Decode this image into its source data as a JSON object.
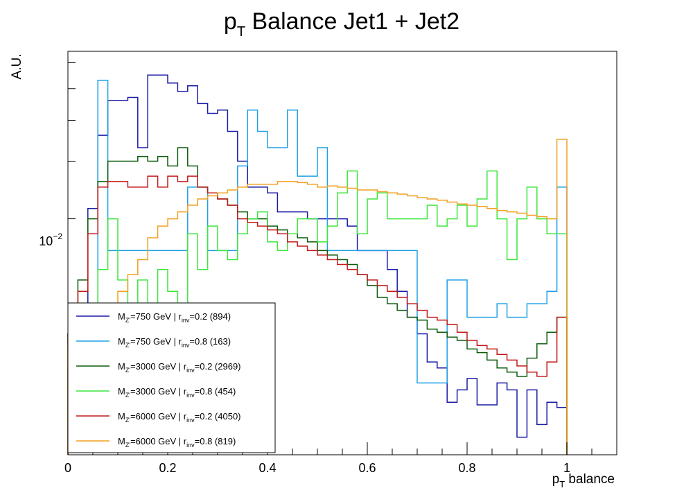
{
  "chart_data": {
    "type": "line",
    "style": "step-histogram",
    "title": {
      "main": "p",
      "sub": "T",
      "rest": " Balance Jet1 + Jet2"
    },
    "xlabel": {
      "main": "p",
      "sub": "T",
      "rest": " balance"
    },
    "ylabel": "A.U.",
    "xlim": [
      0,
      1.1
    ],
    "ylim": [
      0.0038,
      0.065
    ],
    "y_scale": "log",
    "x_ticks": [
      "0",
      "0.2",
      "0.4",
      "0.6",
      "0.8",
      "1"
    ],
    "x_tick_values": [
      0,
      0.2,
      0.4,
      0.6,
      0.8,
      1.0
    ],
    "y_tick_label": {
      "base": "10",
      "exp": "−2"
    },
    "grid": false,
    "legend_position": "bottom-left",
    "bin_edges_start": 0,
    "bin_width": 0.02,
    "series": [
      {
        "label": {
          "m": "M",
          "msub": "Z'",
          "a": "=750 GeV | r",
          "rsub": "inv",
          "b": "=0.2 (894)"
        },
        "color": "#1a1aa6",
        "values": [
          0.0069,
          0.0103,
          0.0215,
          0.036,
          0.046,
          0.046,
          0.047,
          0.033,
          0.055,
          0.055,
          0.052,
          0.049,
          0.051,
          0.045,
          0.042,
          0.043,
          0.037,
          0.03,
          0.025,
          0.025,
          0.024,
          0.021,
          0.021,
          0.021,
          0.02,
          0.02,
          0.02,
          0.02,
          0.019,
          0.016,
          0.016,
          0.016,
          0.014,
          0.012,
          0.01,
          0.0089,
          0.0073,
          0.007,
          0.0055,
          0.006,
          0.0065,
          0.0054,
          0.0054,
          0.0063,
          0.006,
          0.0043,
          0.006,
          0.0047,
          0.0055,
          0.0053
        ]
      },
      {
        "label": {
          "m": "M",
          "msub": "Z'",
          "a": "=750 GeV | r",
          "rsub": "inv",
          "b": "=0.8 (163)"
        },
        "color": "#1fa0e6",
        "values": [
          0.0063,
          0.0063,
          0.0063,
          0.053,
          0.016,
          0.016,
          0.016,
          0.016,
          0.016,
          0.016,
          0.016,
          0.016,
          0.025,
          0.025,
          0.016,
          0.016,
          0.016,
          0.029,
          0.043,
          0.037,
          0.033,
          0.033,
          0.043,
          0.027,
          0.027,
          0.033,
          0.016,
          0.016,
          0.016,
          0.016,
          0.016,
          0.016,
          0.016,
          0.016,
          0.016,
          0.0063,
          0.0063,
          0.0063,
          0.013,
          0.013,
          0.01,
          0.01,
          0.01,
          0.011,
          0.01,
          0.01,
          0.011,
          0.011,
          0.012,
          0.025
        ]
      },
      {
        "label": {
          "m": "M",
          "msub": "Z'",
          "a": "=3000 GeV | r",
          "rsub": "inv",
          "b": "=0.2 (2969)"
        },
        "color": "#0b5c0b",
        "values": [
          0.0089,
          0.013,
          0.02,
          0.026,
          0.03,
          0.03,
          0.03,
          0.031,
          0.03,
          0.031,
          0.029,
          0.033,
          0.029,
          0.025,
          0.024,
          0.023,
          0.022,
          0.021,
          0.02,
          0.02,
          0.019,
          0.0185,
          0.018,
          0.0175,
          0.017,
          0.016,
          0.0155,
          0.015,
          0.0145,
          0.0135,
          0.0125,
          0.0115,
          0.011,
          0.0105,
          0.01,
          0.0098,
          0.0092,
          0.009,
          0.0087,
          0.0085,
          0.008,
          0.0078,
          0.0074,
          0.007,
          0.0068,
          0.0066,
          0.0075,
          0.0083,
          0.009,
          0.01
        ]
      },
      {
        "label": {
          "m": "M",
          "msub": "Z'",
          "a": "=3000 GeV | r",
          "rsub": "inv",
          "b": "=0.8 (454)"
        },
        "color": "#3de63d",
        "values": [
          0.0089,
          0.0087,
          0.0089,
          0.014,
          0.02,
          0.013,
          0.01,
          0.013,
          0.011,
          0.014,
          0.012,
          0.01,
          0.018,
          0.014,
          0.019,
          0.016,
          0.015,
          0.018,
          0.02,
          0.021,
          0.017,
          0.016,
          0.018,
          0.02,
          0.02,
          0.017,
          0.019,
          0.024,
          0.028,
          0.018,
          0.023,
          0.024,
          0.02,
          0.02,
          0.02,
          0.02,
          0.022,
          0.019,
          0.02,
          0.022,
          0.019,
          0.023,
          0.028,
          0.02,
          0.015,
          0.02,
          0.025,
          0.02,
          0.018,
          0.018
        ]
      },
      {
        "label": {
          "m": "M",
          "msub": "Z'",
          "a": "=6000 GeV | r",
          "rsub": "inv",
          "b": "=0.2 (4050)"
        },
        "color": "#c41a1a",
        "values": [
          0.0089,
          0.012,
          0.018,
          0.025,
          0.026,
          0.026,
          0.025,
          0.025,
          0.027,
          0.025,
          0.027,
          0.026,
          0.027,
          0.025,
          0.024,
          0.023,
          0.022,
          0.02,
          0.0195,
          0.019,
          0.0185,
          0.018,
          0.017,
          0.0165,
          0.016,
          0.0155,
          0.015,
          0.0145,
          0.014,
          0.0135,
          0.013,
          0.0125,
          0.012,
          0.0115,
          0.011,
          0.0105,
          0.01,
          0.0098,
          0.0095,
          0.009,
          0.0085,
          0.0082,
          0.008,
          0.0077,
          0.0074,
          0.0071,
          0.0068,
          0.0066,
          0.0073,
          0.01
        ]
      },
      {
        "label": {
          "m": "M",
          "msub": "Z'",
          "a": "=6000 GeV | r",
          "rsub": "inv",
          "b": "=0.8 (819)"
        },
        "color": "#f0a020",
        "values": [
          0.0082,
          0.0085,
          0.0088,
          0.0092,
          0.0098,
          0.012,
          0.0135,
          0.015,
          0.0175,
          0.019,
          0.02,
          0.021,
          0.022,
          0.023,
          0.0235,
          0.024,
          0.0245,
          0.025,
          0.0255,
          0.0255,
          0.0255,
          0.026,
          0.026,
          0.0258,
          0.0255,
          0.025,
          0.0252,
          0.025,
          0.0248,
          0.0245,
          0.0245,
          0.0242,
          0.024,
          0.0238,
          0.0235,
          0.0232,
          0.023,
          0.0228,
          0.0225,
          0.0222,
          0.022,
          0.0218,
          0.0215,
          0.0212,
          0.021,
          0.0208,
          0.0205,
          0.0203,
          0.02,
          0.035
        ]
      }
    ]
  }
}
